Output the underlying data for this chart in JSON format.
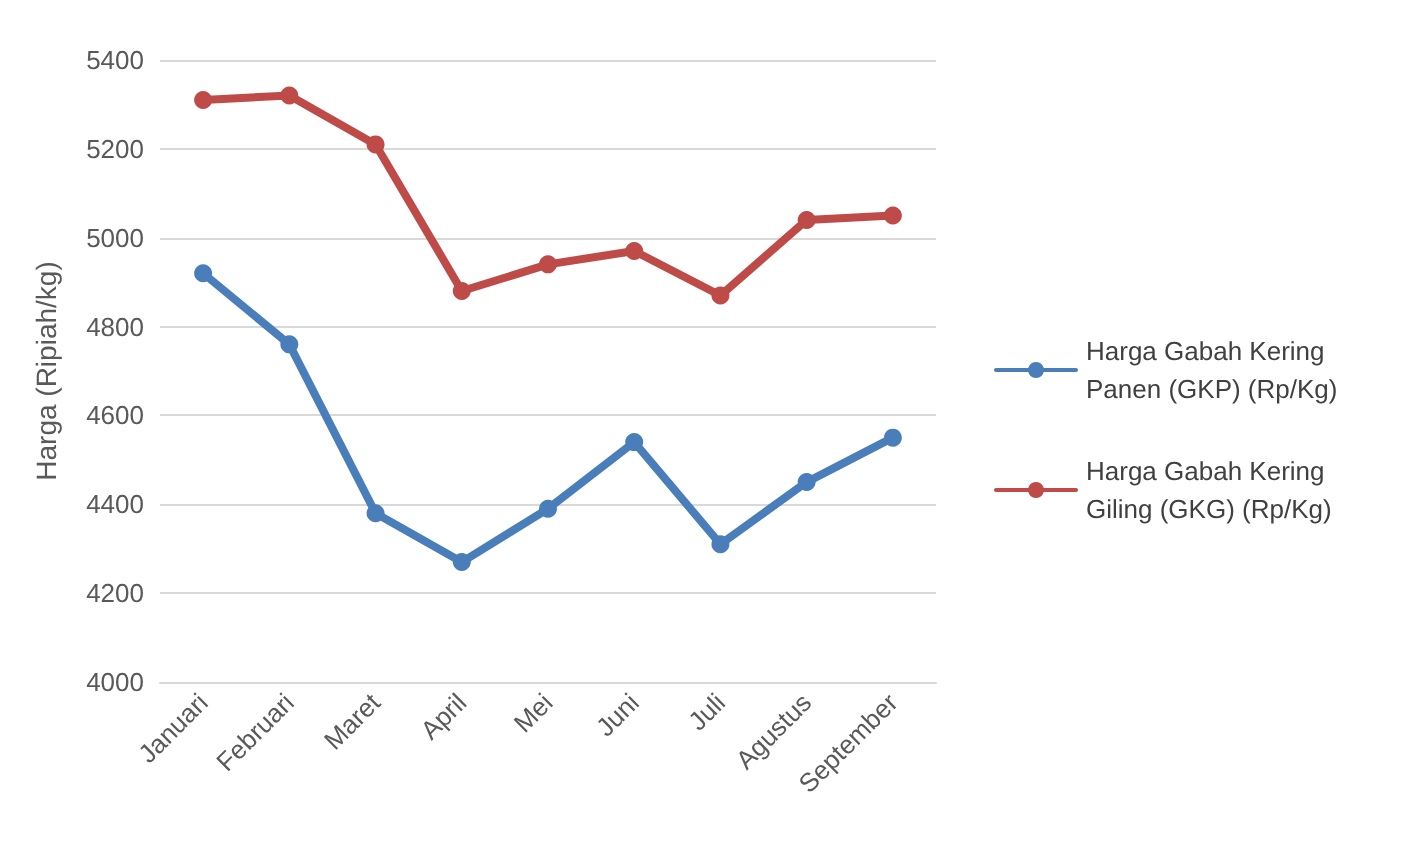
{
  "chart_data": {
    "type": "line",
    "ylabel": "Harga (Ripiah/kg)",
    "categories": [
      "Januari",
      "Februari",
      "Maret",
      "April",
      "Mei",
      "Juni",
      "Juli",
      "Agustus",
      "September"
    ],
    "series": [
      {
        "name": "Harga Gabah Kering Panen (GKP) (Rp/Kg)",
        "color": "#4a7ebb",
        "values": [
          4920,
          4760,
          4380,
          4270,
          4390,
          4540,
          4310,
          4450,
          4550
        ]
      },
      {
        "name": "Harga Gabah Kering Giling (GKG) (Rp/Kg)",
        "color": "#be4b48",
        "values": [
          5310,
          5320,
          5210,
          4880,
          4940,
          4970,
          4870,
          5040,
          5050
        ]
      }
    ],
    "ylim": [
      4000,
      5400
    ],
    "yticks": [
      4000,
      4200,
      4400,
      4600,
      4800,
      5000,
      5200,
      5400
    ],
    "grid": "y",
    "legend": "right",
    "marker": "circle",
    "line_style": "solid"
  }
}
